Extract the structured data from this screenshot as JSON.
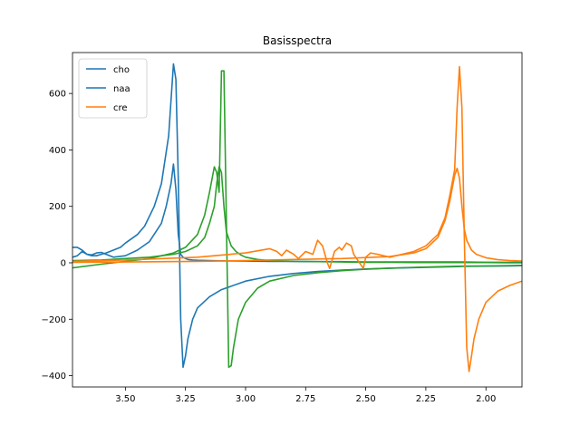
{
  "chart_data": {
    "type": "line",
    "title": "Basisspectra",
    "xlabel": "",
    "ylabel": "",
    "x_reversed": true,
    "xlim": [
      3.72,
      1.85
    ],
    "ylim": [
      -440,
      745
    ],
    "x_ticks": [
      3.5,
      3.25,
      3.0,
      2.75,
      2.5,
      2.25,
      2.0
    ],
    "x_tick_labels": [
      "3.50",
      "3.25",
      "3.00",
      "2.75",
      "2.50",
      "2.25",
      "2.00"
    ],
    "y_ticks": [
      -400,
      -200,
      0,
      200,
      400,
      600
    ],
    "y_tick_labels": [
      "−400",
      "−200",
      "0",
      "200",
      "400",
      "600"
    ],
    "grid": false,
    "legend_position": "top-left",
    "legend": [
      {
        "label": "cho",
        "color": "#1f77b4"
      },
      {
        "label": "naa",
        "color": "#1f77b4"
      },
      {
        "label": "cre",
        "color": "#ff7f0e"
      }
    ],
    "series": [
      {
        "color": "#1f77b4",
        "x": [
          3.72,
          3.7,
          3.68,
          3.66,
          3.64,
          3.62,
          3.6,
          3.58,
          3.55,
          3.52,
          3.5,
          3.45,
          3.42,
          3.38,
          3.35,
          3.32,
          3.3,
          3.29,
          3.28,
          3.27,
          3.26,
          3.25,
          3.24,
          3.22,
          3.2,
          3.15,
          3.1,
          3.0,
          2.9,
          2.8,
          2.7,
          2.6,
          2.5,
          2.4,
          2.3,
          2.2,
          2.1,
          2.0,
          1.9,
          1.85
        ],
        "y": [
          55,
          55,
          45,
          30,
          25,
          25,
          30,
          35,
          45,
          55,
          70,
          100,
          130,
          200,
          280,
          450,
          705,
          650,
          300,
          -200,
          -370,
          -330,
          -270,
          -200,
          -160,
          -120,
          -95,
          -65,
          -48,
          -38,
          -31,
          -26,
          -22,
          -19,
          -17,
          -15,
          -13,
          -12,
          -11,
          -10
        ]
      },
      {
        "color": "#1f77b4",
        "x": [
          3.72,
          3.7,
          3.68,
          3.66,
          3.64,
          3.62,
          3.6,
          3.58,
          3.55,
          3.5,
          3.45,
          3.4,
          3.35,
          3.33,
          3.31,
          3.3,
          3.29,
          3.28,
          3.27,
          3.26,
          3.25,
          3.24,
          3.22,
          3.2,
          3.15,
          3.1,
          3.0,
          2.9,
          2.8,
          2.7,
          2.6,
          2.5,
          2.4,
          2.3,
          2.2,
          2.1,
          2.0,
          1.9,
          1.85
        ],
        "y": [
          20,
          25,
          40,
          30,
          28,
          35,
          37,
          30,
          20,
          25,
          45,
          75,
          140,
          200,
          280,
          350,
          260,
          100,
          30,
          20,
          15,
          12,
          10,
          9,
          8,
          7,
          6,
          5,
          5,
          4,
          4,
          3,
          3,
          3,
          3,
          3,
          2,
          2,
          2
        ]
      },
      {
        "color": "#2ca02c",
        "x": [
          3.72,
          3.6,
          3.5,
          3.4,
          3.3,
          3.25,
          3.2,
          3.17,
          3.15,
          3.13,
          3.12,
          3.11,
          3.1,
          3.09,
          3.08,
          3.07,
          3.06,
          3.05,
          3.03,
          3.0,
          2.95,
          2.9,
          2.8,
          2.7,
          2.6,
          2.5,
          2.4,
          2.3,
          2.2,
          2.1,
          2.0,
          1.9,
          1.85
        ],
        "y": [
          -18,
          -5,
          5,
          15,
          35,
          55,
          100,
          170,
          250,
          340,
          320,
          250,
          680,
          680,
          150,
          -370,
          -365,
          -300,
          -200,
          -140,
          -90,
          -65,
          -45,
          -35,
          -28,
          -23,
          -19,
          -16,
          -14,
          -12,
          -11,
          -10,
          -9
        ]
      },
      {
        "color": "#2ca02c",
        "x": [
          3.72,
          3.6,
          3.5,
          3.4,
          3.3,
          3.25,
          3.2,
          3.17,
          3.15,
          3.13,
          3.12,
          3.11,
          3.1,
          3.09,
          3.08,
          3.06,
          3.04,
          3.02,
          3.0,
          2.95,
          2.9,
          2.8,
          2.7,
          2.6,
          2.5,
          2.4,
          2.3,
          2.2,
          2.1,
          2.0,
          1.9,
          1.85
        ],
        "y": [
          8,
          10,
          15,
          20,
          30,
          40,
          60,
          90,
          140,
          200,
          280,
          340,
          320,
          200,
          110,
          60,
          40,
          28,
          20,
          12,
          8,
          5,
          4,
          3,
          2,
          2,
          1,
          1,
          1,
          1,
          0,
          0
        ]
      },
      {
        "color": "#ff7f0e",
        "x": [
          3.72,
          3.5,
          3.2,
          3.0,
          2.9,
          2.87,
          2.85,
          2.83,
          2.8,
          2.78,
          2.75,
          2.72,
          2.7,
          2.68,
          2.66,
          2.65,
          2.63,
          2.61,
          2.6,
          2.58,
          2.56,
          2.55,
          2.53,
          2.51,
          2.5,
          2.48,
          2.45,
          2.4,
          2.3,
          2.25,
          2.2,
          2.17,
          2.15,
          2.13,
          2.12,
          2.11,
          2.1,
          2.09,
          2.08,
          2.07,
          2.06,
          2.05,
          2.03,
          2.0,
          1.95,
          1.9,
          1.85
        ],
        "y": [
          5,
          10,
          20,
          35,
          50,
          40,
          25,
          45,
          30,
          15,
          40,
          30,
          80,
          60,
          0,
          -20,
          40,
          55,
          45,
          70,
          60,
          30,
          5,
          -20,
          20,
          35,
          30,
          20,
          40,
          60,
          100,
          160,
          240,
          330,
          550,
          695,
          550,
          100,
          -300,
          -385,
          -330,
          -270,
          -200,
          -140,
          -100,
          -80,
          -65
        ]
      },
      {
        "color": "#ff7f0e",
        "x": [
          3.72,
          3.5,
          3.2,
          3.0,
          2.8,
          2.6,
          2.4,
          2.3,
          2.25,
          2.2,
          2.17,
          2.15,
          2.13,
          2.12,
          2.11,
          2.1,
          2.09,
          2.08,
          2.06,
          2.04,
          2.0,
          1.95,
          1.9,
          1.85
        ],
        "y": [
          2,
          3,
          5,
          8,
          12,
          15,
          22,
          35,
          50,
          90,
          150,
          220,
          310,
          335,
          300,
          200,
          120,
          80,
          45,
          30,
          18,
          11,
          8,
          6
        ]
      }
    ]
  }
}
